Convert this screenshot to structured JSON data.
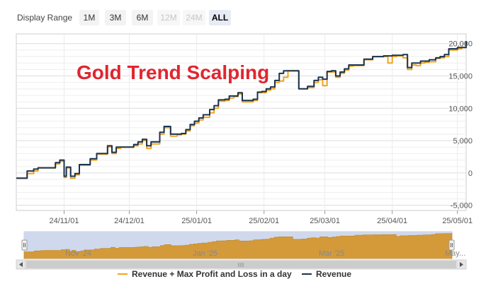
{
  "range_selector": {
    "label": "Display Range",
    "buttons": [
      {
        "label": "1M",
        "state": "normal"
      },
      {
        "label": "3M",
        "state": "normal"
      },
      {
        "label": "6M",
        "state": "normal"
      },
      {
        "label": "12M",
        "state": "disabled"
      },
      {
        "label": "24M",
        "state": "disabled"
      },
      {
        "label": "ALL",
        "state": "active"
      }
    ]
  },
  "overlay_title": "Gold Trend Scalping",
  "colors": {
    "revenue": "#1b3350",
    "revenue_max": "#f0a41c",
    "title": "#e0262f",
    "navigator_fill": "#d49a3a",
    "navigator_mask": "#cfd8ec"
  },
  "navigator_labels": [
    "Nov '24",
    "Jan '25",
    "Mar '25",
    "May..."
  ],
  "chart_data": {
    "type": "line",
    "x_tick_labels": [
      "24/11/01",
      "24/12/01",
      "25/01/01",
      "25/02/01",
      "25/03/01",
      "25/04/01",
      "25/05/01"
    ],
    "x_ticks": [
      "2024-11-01",
      "2024-12-01",
      "2025-01-01",
      "2025-02-01",
      "2025-03-01",
      "2025-04-01",
      "2025-05-01"
    ],
    "xlim": [
      "2024-10-10",
      "2025-05-05"
    ],
    "y_tick_labels": [
      "-5,000",
      "0",
      "5,000",
      "10,000",
      "15,000",
      "20,000"
    ],
    "y_ticks": [
      -5000,
      0,
      5000,
      10000,
      15000,
      20000
    ],
    "ylim": [
      -5800,
      21500
    ],
    "grid": true,
    "legend_position": "bottom",
    "x": [
      "2024-10-10",
      "2024-10-13",
      "2024-10-15",
      "2024-10-18",
      "2024-10-20",
      "2024-10-22",
      "2024-10-25",
      "2024-10-28",
      "2024-10-30",
      "2024-11-01",
      "2024-11-02",
      "2024-11-04",
      "2024-11-06",
      "2024-11-08",
      "2024-11-10",
      "2024-11-13",
      "2024-11-16",
      "2024-11-19",
      "2024-11-21",
      "2024-11-23",
      "2024-11-25",
      "2024-11-27",
      "2024-11-29",
      "2024-11-30",
      "2024-12-01",
      "2024-12-03",
      "2024-12-05",
      "2024-12-07",
      "2024-12-09",
      "2024-12-11",
      "2024-12-13",
      "2024-12-15",
      "2024-12-17",
      "2024-12-20",
      "2024-12-23",
      "2024-12-25",
      "2024-12-27",
      "2024-12-29",
      "2024-12-31",
      "2025-01-02",
      "2025-01-04",
      "2025-01-07",
      "2025-01-09",
      "2025-01-11",
      "2025-01-14",
      "2025-01-16",
      "2025-01-18",
      "2025-01-20",
      "2025-01-22",
      "2025-01-25",
      "2025-01-27",
      "2025-01-29",
      "2025-01-31",
      "2025-02-02",
      "2025-02-04",
      "2025-02-06",
      "2025-02-08",
      "2025-02-10",
      "2025-02-12",
      "2025-02-14",
      "2025-02-17",
      "2025-02-19",
      "2025-02-21",
      "2025-02-24",
      "2025-02-26",
      "2025-02-28",
      "2025-03-02",
      "2025-03-04",
      "2025-03-06",
      "2025-03-08",
      "2025-03-10",
      "2025-03-12",
      "2025-03-14",
      "2025-03-17",
      "2025-03-19",
      "2025-03-21",
      "2025-03-23",
      "2025-03-26",
      "2025-03-28",
      "2025-03-30",
      "2025-04-01",
      "2025-04-03",
      "2025-04-06",
      "2025-04-08",
      "2025-04-10",
      "2025-04-12",
      "2025-04-14",
      "2025-04-16",
      "2025-04-18",
      "2025-04-21",
      "2025-04-23",
      "2025-04-25",
      "2025-04-27",
      "2025-04-29",
      "2025-05-01",
      "2025-05-03",
      "2025-05-05"
    ],
    "series": [
      {
        "name": "Revenue + Max Profit and Loss in a day",
        "values": [
          -800,
          -800,
          -100,
          300,
          800,
          800,
          800,
          1400,
          1800,
          -700,
          800,
          -800,
          -300,
          1200,
          1200,
          2000,
          2900,
          2900,
          4000,
          3000,
          3800,
          4000,
          4000,
          4000,
          4000,
          4200,
          4500,
          5000,
          3800,
          4500,
          4500,
          6000,
          7000,
          5700,
          5900,
          6000,
          6500,
          7300,
          7700,
          8200,
          8600,
          9300,
          10000,
          11100,
          11200,
          11600,
          11800,
          12200,
          11000,
          11000,
          11200,
          12400,
          12400,
          12800,
          13000,
          14000,
          14200,
          14800,
          15800,
          15800,
          13000,
          13000,
          13200,
          14000,
          14400,
          13500,
          15600,
          15600,
          14800,
          15400,
          15900,
          16500,
          16600,
          16600,
          17500,
          17500,
          18000,
          18000,
          18000,
          17000,
          18000,
          18100,
          17800,
          16000,
          16700,
          16600,
          17000,
          17100,
          17200,
          17700,
          17800,
          18000,
          19000,
          19000,
          19200,
          19400,
          20400
        ]
      },
      {
        "name": "Revenue",
        "values": [
          -800,
          -800,
          300,
          600,
          800,
          800,
          800,
          1600,
          2000,
          -500,
          900,
          -500,
          -100,
          1300,
          1300,
          2200,
          3000,
          3000,
          4200,
          3200,
          4000,
          4000,
          4000,
          4000,
          4000,
          4400,
          4800,
          5200,
          4200,
          4800,
          4800,
          6300,
          7200,
          6000,
          6000,
          6100,
          6700,
          7500,
          8000,
          8500,
          9000,
          9800,
          10400,
          11300,
          11400,
          11900,
          11900,
          12400,
          11200,
          11200,
          11400,
          12500,
          12600,
          13000,
          13300,
          14300,
          15400,
          15800,
          15800,
          15800,
          13000,
          13000,
          13400,
          14300,
          14800,
          14500,
          15700,
          15800,
          15000,
          15600,
          16100,
          16700,
          16700,
          16700,
          17600,
          17600,
          18000,
          18000,
          18100,
          18100,
          18200,
          18200,
          18300,
          16300,
          17000,
          17000,
          17300,
          17300,
          17500,
          17800,
          18000,
          18300,
          19200,
          19200,
          19400,
          19400,
          20400
        ]
      }
    ]
  }
}
